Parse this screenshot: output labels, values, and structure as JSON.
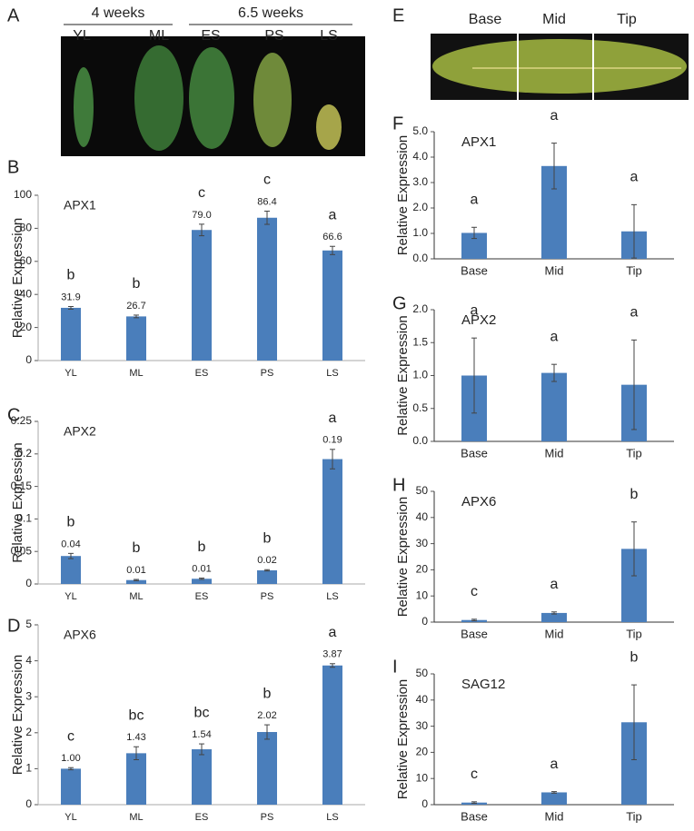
{
  "photos": [
    {
      "panel": "A",
      "groups": [
        "4 weeks",
        "6.5 weeks"
      ],
      "labels": [
        "YL",
        "ML",
        "ES",
        "PS",
        "LS"
      ]
    },
    {
      "panel": "E",
      "labels": [
        "Base",
        "Mid",
        "Tip"
      ]
    }
  ],
  "chart_data": [
    {
      "type": "bar",
      "panel": "B",
      "title": "APX1",
      "ylabel": "Relative Expression",
      "color": "#4a7ebb",
      "categories": [
        "YL",
        "ML",
        "ES",
        "PS",
        "LS"
      ],
      "values": [
        31.9,
        26.7,
        79.0,
        86.4,
        66.6
      ],
      "value_labels": [
        "31.9",
        "26.7",
        "79.0",
        "86.4",
        "66.6"
      ],
      "errors": [
        0.8,
        0.8,
        3.5,
        4,
        2.5
      ],
      "annotations": [
        "b",
        "b",
        "c",
        "c",
        "a"
      ],
      "ylim": [
        0,
        100
      ],
      "yticks": [
        0,
        20,
        40,
        60,
        80,
        100
      ]
    },
    {
      "type": "bar",
      "panel": "C",
      "title": "APX2",
      "ylabel": "Relative Expression",
      "color": "#4a7ebb",
      "categories": [
        "YL",
        "ML",
        "ES",
        "PS",
        "LS"
      ],
      "values": [
        0.043,
        0.006,
        0.008,
        0.021,
        0.192
      ],
      "value_labels": [
        "0.04",
        "0.01",
        "0.01",
        "0.02",
        "0.19"
      ],
      "errors": [
        0.004,
        0.001,
        0.001,
        0.001,
        0.015
      ],
      "annotations": [
        "b",
        "b",
        "b",
        "b",
        "a"
      ],
      "ylim": [
        0,
        0.25
      ],
      "yticks": [
        0,
        0.05,
        0.1,
        0.15,
        0.2,
        0.25
      ]
    },
    {
      "type": "bar",
      "panel": "D",
      "title": "APX6",
      "ylabel": "Relative Expression",
      "color": "#4a7ebb",
      "categories": [
        "YL",
        "ML",
        "ES",
        "PS",
        "LS"
      ],
      "values": [
        1.0,
        1.43,
        1.54,
        2.02,
        3.87
      ],
      "value_labels": [
        "1.00",
        "1.43",
        "1.54",
        "2.02",
        "3.87"
      ],
      "errors": [
        0.03,
        0.18,
        0.15,
        0.2,
        0.05
      ],
      "annotations": [
        "c",
        "bc",
        "bc",
        "b",
        "a"
      ],
      "ylim": [
        0,
        5
      ],
      "yticks": [
        0,
        1,
        2,
        3,
        4,
        5
      ]
    },
    {
      "type": "bar",
      "panel": "F",
      "title": "APX1",
      "ylabel": "Relative Expression",
      "color": "#4a7ebb",
      "categories": [
        "Base",
        "Mid",
        "Tip"
      ],
      "values": [
        1.02,
        3.65,
        1.08
      ],
      "errors": [
        0.22,
        0.9,
        1.05
      ],
      "annotations": [
        "a",
        "a",
        "a"
      ],
      "ylim": [
        0,
        5
      ],
      "yticks": [
        {
          "value": 0,
          "label": "0.0"
        },
        {
          "value": 1,
          "label": "1.0"
        },
        {
          "value": 2,
          "label": "2.0"
        },
        {
          "value": 3,
          "label": "3.0"
        },
        {
          "value": 4,
          "label": "4.0"
        },
        {
          "value": 5,
          "label": "5.0"
        }
      ]
    },
    {
      "type": "bar",
      "panel": "G",
      "title": "APX2",
      "ylabel": "Relative Expression",
      "color": "#4a7ebb",
      "categories": [
        "Base",
        "Mid",
        "Tip"
      ],
      "values": [
        1.0,
        1.04,
        0.86
      ],
      "errors": [
        0.57,
        0.13,
        0.68
      ],
      "annotations": [
        "a",
        "a",
        "a"
      ],
      "ylim": [
        0,
        2
      ],
      "yticks": [
        {
          "value": 0,
          "label": "0.0"
        },
        0.5,
        {
          "value": 1,
          "label": "1.0"
        },
        1.5,
        {
          "value": 2,
          "label": "2.0"
        }
      ]
    },
    {
      "type": "bar",
      "panel": "H",
      "title": "APX6",
      "ylabel": "Relative Expression",
      "color": "#4a7ebb",
      "categories": [
        "Base",
        "Mid",
        "Tip"
      ],
      "values": [
        0.8,
        3.5,
        28
      ],
      "errors": [
        0.3,
        0.4,
        10.3
      ],
      "annotations": [
        "c",
        "a",
        "b"
      ],
      "ylim": [
        0,
        50
      ],
      "yticks": [
        0,
        10,
        20,
        30,
        40,
        50
      ]
    },
    {
      "type": "bar",
      "panel": "I",
      "title": "SAG12",
      "ylabel": "Relative Expression",
      "color": "#4a7ebb",
      "categories": [
        "Base",
        "Mid",
        "Tip"
      ],
      "values": [
        0.8,
        4.7,
        31.5
      ],
      "errors": [
        0.3,
        0.3,
        14.3
      ],
      "annotations": [
        "c",
        "a",
        "b"
      ],
      "ylim": [
        0,
        50
      ],
      "yticks": [
        0,
        10,
        20,
        30,
        40,
        50
      ]
    }
  ]
}
